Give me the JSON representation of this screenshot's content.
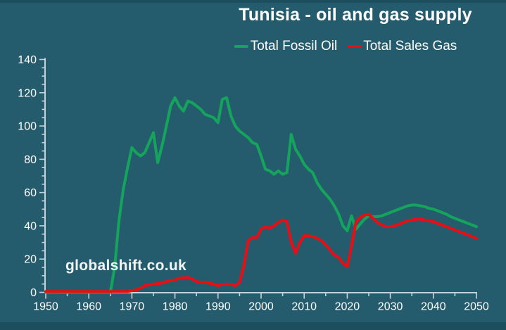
{
  "page": {
    "title": "Tunisia - oil and gas supply",
    "watermark": "globalshift.co.uk"
  },
  "colors": {
    "background": "#255c6d",
    "frame_band": "#1d4e5e",
    "axis": "#c5d2d7",
    "text": "#ffffff",
    "oil_green": "#14a45c",
    "gas_red": "#e90e13"
  },
  "chart_data": {
    "type": "line",
    "title": "Tunisia - oil and gas supply",
    "xlabel": "",
    "ylabel": "",
    "xlim": [
      1950,
      2050
    ],
    "ylim": [
      0,
      140
    ],
    "xticks": [
      1950,
      1960,
      1970,
      1980,
      1990,
      2000,
      2010,
      2020,
      2030,
      2040,
      2050
    ],
    "yticks": [
      0,
      20,
      40,
      60,
      80,
      100,
      120,
      140
    ],
    "xtick_minor_step": 5,
    "ytick_minor_step": 5,
    "grid": false,
    "legend_position": "top-center",
    "x_start": 1950,
    "x_step": 1,
    "series": [
      {
        "name": "Total Fossil Oil",
        "color": "#14a45c",
        "values": [
          0,
          0,
          0,
          0,
          0,
          0,
          0,
          0,
          0,
          0,
          0,
          0,
          0,
          0,
          0,
          0,
          15,
          43,
          62,
          75,
          87,
          84,
          82,
          84,
          90,
          96,
          78,
          88,
          100,
          112,
          117,
          112,
          109,
          115,
          114,
          112,
          110,
          107,
          106,
          105,
          102,
          116,
          117,
          106,
          100,
          97,
          95,
          93,
          90,
          89,
          82,
          74,
          73,
          71,
          73,
          71,
          72,
          95,
          86,
          82,
          77,
          74,
          72,
          66,
          62,
          59,
          56,
          52,
          47,
          40,
          37,
          46,
          38,
          41,
          44,
          46,
          45.5,
          45.5,
          46,
          47,
          48,
          49,
          50,
          51,
          52,
          52.5,
          52.5,
          52,
          51.5,
          50.5,
          50,
          49,
          48,
          47,
          45.5,
          44.5,
          43.5,
          42.5,
          41.5,
          40.5,
          39.5
        ]
      },
      {
        "name": "Total Sales Gas",
        "color": "#e90e13",
        "values": [
          0.5,
          0.5,
          0.5,
          0.5,
          0.5,
          0.5,
          0.5,
          0.5,
          0.5,
          0.5,
          0.5,
          0.5,
          0.5,
          0.5,
          0.5,
          0.5,
          0.5,
          0.5,
          0.5,
          0.5,
          1,
          1.5,
          2.5,
          4,
          4.5,
          5,
          5.3,
          5.6,
          6.5,
          7,
          7.5,
          8.5,
          8.8,
          9,
          8,
          6.5,
          6,
          6,
          5.5,
          5,
          4,
          4.8,
          5,
          4.8,
          4,
          6,
          16,
          31,
          33,
          33,
          38,
          39.5,
          38.5,
          40,
          42,
          43.5,
          42.5,
          30,
          23.5,
          30,
          34,
          34,
          33.5,
          32.5,
          31,
          28.5,
          25.5,
          22.5,
          21,
          17.5,
          15.5,
          28,
          42,
          45,
          46.5,
          47,
          44.5,
          42,
          40.5,
          39.5,
          39.5,
          40,
          41,
          42,
          43,
          43.5,
          44,
          44,
          43.5,
          43,
          42.5,
          41.5,
          40.5,
          39.5,
          38.5,
          37.5,
          36.5,
          35.5,
          34.5,
          33.5,
          32.5
        ]
      }
    ]
  }
}
